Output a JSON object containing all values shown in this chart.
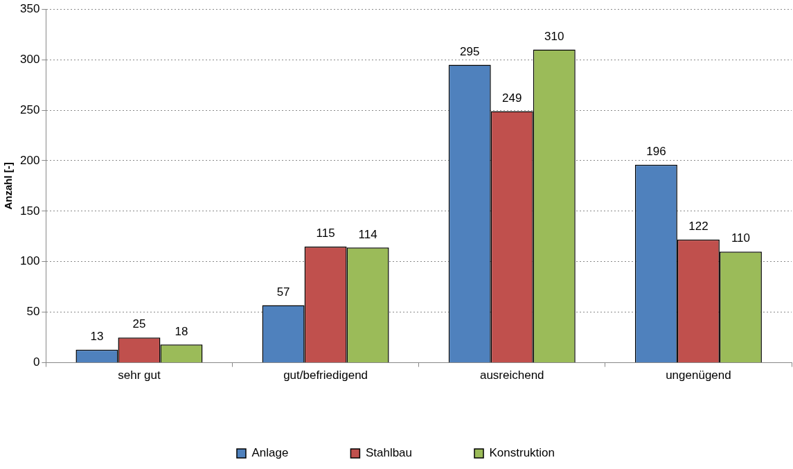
{
  "chart_data": {
    "type": "bar",
    "ylabel": "Anzahl [-]",
    "categories": [
      "sehr gut",
      "gut/befriedigend",
      "ausreichend",
      "ungenügend"
    ],
    "series": [
      {
        "name": "Anlage",
        "color": "#4f81bd",
        "values": [
          13,
          57,
          295,
          196
        ]
      },
      {
        "name": "Stahlbau",
        "color": "#c0504d",
        "values": [
          25,
          115,
          249,
          122
        ]
      },
      {
        "name": "Konstruktion",
        "color": "#9bbb59",
        "values": [
          18,
          114,
          310,
          110
        ]
      }
    ],
    "ylim": [
      0,
      350
    ],
    "yticks": [
      0,
      50,
      100,
      150,
      200,
      250,
      300,
      350
    ],
    "grid": "y",
    "legend": "bottom",
    "data_labels": true
  }
}
